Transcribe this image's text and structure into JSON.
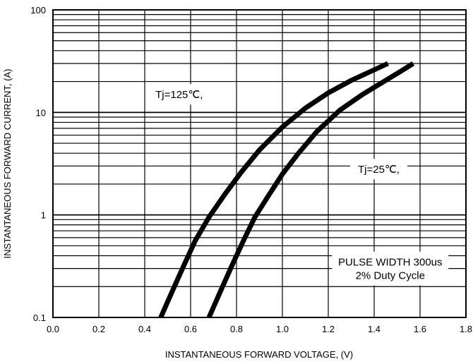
{
  "chart_data": {
    "type": "line",
    "xlabel": "INSTANTANEOUS FORWARD VOLTAGE, (V)",
    "ylabel": "INSTANTANEOUS FORWARD CURRENT, (A)",
    "xlim": [
      0.0,
      1.8
    ],
    "ylim": [
      0.1,
      100
    ],
    "y_scale": "log",
    "grid": true,
    "x_ticks": [
      "0.0",
      "0.2",
      "0.4",
      "0.6",
      "0.8",
      "1.0",
      "1.2",
      "1.4",
      "1.6",
      "1.8"
    ],
    "y_ticks": [
      "0.1",
      "1",
      "10",
      "100"
    ],
    "series": [
      {
        "name": "Tj=125℃,",
        "x": [
          0.47,
          0.52,
          0.57,
          0.62,
          0.68,
          0.75,
          0.82,
          0.9,
          1.0,
          1.1,
          1.2,
          1.3,
          1.4,
          1.46
        ],
        "y": [
          0.1,
          0.18,
          0.32,
          0.56,
          0.95,
          1.6,
          2.6,
          4.3,
          7.2,
          11.0,
          15.5,
          20.5,
          26.0,
          30.0
        ]
      },
      {
        "name": "Tj=25℃,",
        "x": [
          0.68,
          0.73,
          0.78,
          0.83,
          0.88,
          0.94,
          1.0,
          1.07,
          1.15,
          1.25,
          1.35,
          1.45,
          1.52,
          1.57
        ],
        "y": [
          0.1,
          0.18,
          0.32,
          0.56,
          0.95,
          1.55,
          2.5,
          4.0,
          6.5,
          10.5,
          15.0,
          20.5,
          25.5,
          30.0
        ]
      }
    ],
    "annotations": [
      {
        "text": "Tj=125℃,",
        "x": 0.55,
        "y": 15
      },
      {
        "text": "Tj=25℃,",
        "x": 1.42,
        "y": 2.8
      },
      {
        "lines": [
          "PULSE WIDTH 300us",
          "2% Duty Cycle"
        ],
        "x": 1.47,
        "y": 0.3
      }
    ]
  }
}
